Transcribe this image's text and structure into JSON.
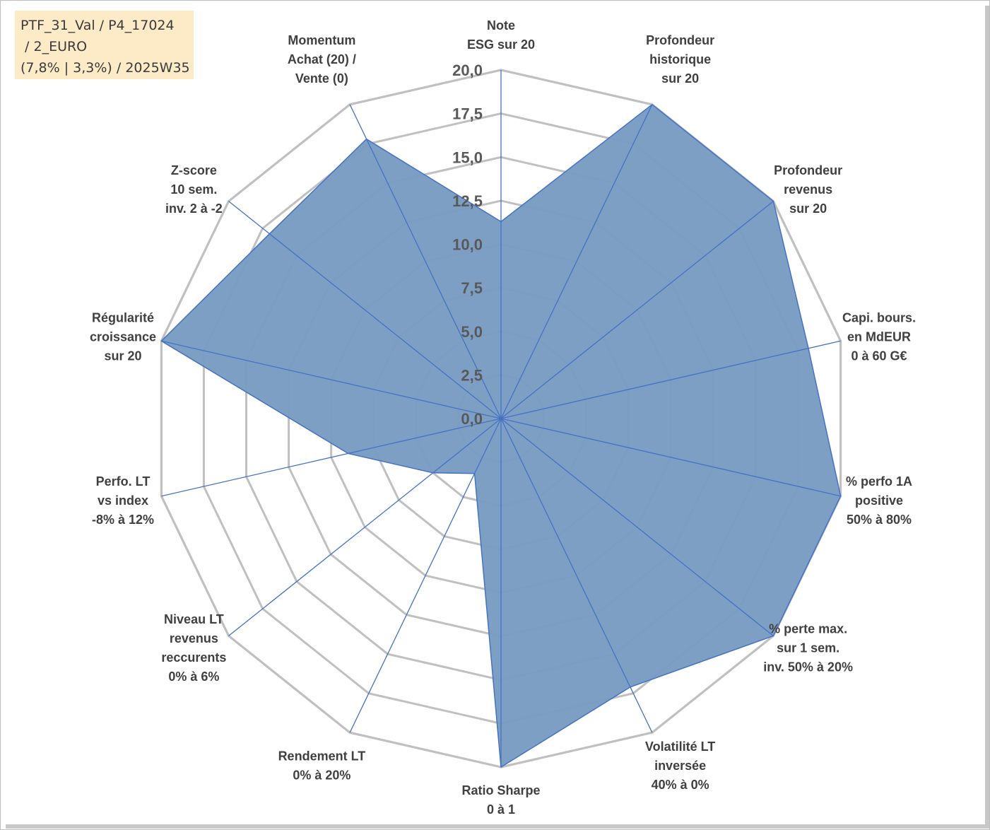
{
  "chart_title": {
    "lines": [
      "PTF_31_Val / P4_17024",
      " / 2_EURO",
      "(7,8% | 3,3%) / 2025W35"
    ]
  },
  "colors": {
    "grid": "#c0c0c0",
    "spoke": "#4472c4",
    "fill": "#7a9cc2",
    "stroke": "#4472c4",
    "title_bg": "#fdebc8"
  },
  "chart_data": {
    "type": "radar",
    "rmin": 0,
    "rmax": 20,
    "tick_step": 2.5,
    "tick_labels": [
      "0,0",
      "2,5",
      "5,0",
      "7,5",
      "10,0",
      "12,5",
      "15,0",
      "17,5",
      "20,0"
    ],
    "axes": [
      {
        "label": [
          "Note",
          "ESG sur 20"
        ],
        "value": 11.3
      },
      {
        "label": [
          "Profondeur",
          "historique",
          "sur 20"
        ],
        "value": 20
      },
      {
        "label": [
          "Profondeur",
          "revenus",
          "sur 20"
        ],
        "value": 20
      },
      {
        "label": [
          "Capi. bours.",
          "en MdEUR",
          "0 à 60 G€"
        ],
        "value": 18.1
      },
      {
        "label": [
          "% perfo 1A",
          "positive",
          "50% à 80%"
        ],
        "value": 20
      },
      {
        "label": [
          "% perte max.",
          "sur 1 sem.",
          "inv. 50% à 20%"
        ],
        "value": 20
      },
      {
        "label": [
          "Volatilité LT",
          "inversée",
          "40% à 0%"
        ],
        "value": 17.1
      },
      {
        "label": [
          "Ratio Sharpe",
          "0 à 1"
        ],
        "value": 20
      },
      {
        "label": [
          "Rendement LT",
          "0% à 20%"
        ],
        "value": 3.5
      },
      {
        "label": [
          "Niveau LT",
          "revenus",
          "reccurents",
          "0% à 6%"
        ],
        "value": 5.0
      },
      {
        "label": [
          "Perfo. LT",
          "vs index",
          "-8% à 12%"
        ],
        "value": 9.0
      },
      {
        "label": [
          "Régularité",
          "croissance",
          "sur 20"
        ],
        "value": 20
      },
      {
        "label": [
          "Z-score",
          "10 sem.",
          "inv. 2 à -2"
        ],
        "value": 17.0
      },
      {
        "label": [
          "Momentum",
          "Achat (20) /",
          "Vente (0)"
        ],
        "value": 17.8
      }
    ]
  }
}
